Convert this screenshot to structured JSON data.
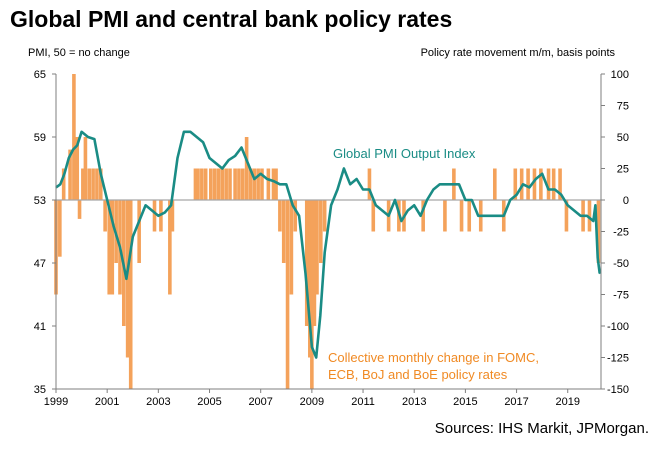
{
  "title": "Global PMI and central bank policy rates",
  "left_axis_caption": "PMI, 50 = no change",
  "right_axis_caption": "Policy rate movement m/m, basis points",
  "source": "Sources: IHS Markit, JPMorgan.",
  "chart_data": {
    "type": "bar+line",
    "x_ticks": [
      "1999",
      "2001",
      "2003",
      "2005",
      "2007",
      "2009",
      "2011",
      "2013",
      "2015",
      "2017",
      "2019"
    ],
    "y_left": {
      "ticks": [
        "65",
        "59",
        "53",
        "47",
        "41",
        "35"
      ],
      "range": [
        35,
        65
      ]
    },
    "y_right": {
      "ticks": [
        "100",
        "75",
        "50",
        "25",
        "0",
        "-25",
        "-50",
        "-75",
        "-100",
        "-125",
        "-150"
      ],
      "range": [
        -150,
        100
      ]
    },
    "line": {
      "name": "Global PMI Output Index",
      "color": "#1a8c85",
      "x": [
        1999.0,
        1999.17,
        1999.33,
        1999.5,
        1999.67,
        1999.83,
        2000.0,
        2000.25,
        2000.5,
        2000.75,
        2001.0,
        2001.25,
        2001.5,
        2001.75,
        2002.0,
        2002.25,
        2002.5,
        2002.75,
        2003.0,
        2003.25,
        2003.5,
        2003.75,
        2004.0,
        2004.25,
        2004.5,
        2004.75,
        2005.0,
        2005.25,
        2005.5,
        2005.75,
        2006.0,
        2006.25,
        2006.5,
        2006.75,
        2007.0,
        2007.25,
        2007.5,
        2007.75,
        2008.0,
        2008.25,
        2008.5,
        2008.75,
        2009.0,
        2009.17,
        2009.33,
        2009.5,
        2009.75,
        2010.0,
        2010.25,
        2010.5,
        2010.75,
        2011.0,
        2011.25,
        2011.5,
        2011.75,
        2012.0,
        2012.25,
        2012.5,
        2012.75,
        2013.0,
        2013.25,
        2013.5,
        2013.75,
        2014.0,
        2014.25,
        2014.5,
        2014.75,
        2015.0,
        2015.25,
        2015.5,
        2015.75,
        2016.0,
        2016.25,
        2016.5,
        2016.75,
        2017.0,
        2017.25,
        2017.5,
        2017.75,
        2018.0,
        2018.25,
        2018.5,
        2018.75,
        2019.0,
        2019.25,
        2019.5,
        2019.75,
        2020.0,
        2020.08,
        2020.17,
        2020.25
      ],
      "y": [
        54.2,
        54.5,
        55.5,
        57.0,
        57.8,
        58.2,
        59.5,
        59.0,
        58.8,
        55.5,
        53.0,
        50.5,
        48.5,
        45.5,
        49.5,
        51.0,
        52.5,
        52.0,
        51.5,
        51.8,
        52.5,
        57.0,
        59.5,
        59.5,
        59.0,
        58.5,
        57.0,
        56.5,
        56.0,
        56.8,
        57.2,
        58.0,
        56.5,
        55.0,
        55.5,
        55.0,
        54.8,
        54.5,
        54.5,
        52.5,
        51.5,
        46.0,
        39.0,
        38.0,
        42.0,
        48.0,
        52.5,
        54.0,
        56.0,
        54.5,
        55.0,
        54.0,
        54.0,
        52.5,
        52.0,
        51.5,
        53.0,
        51.0,
        52.0,
        52.5,
        51.5,
        53.0,
        54.0,
        54.5,
        54.5,
        54.5,
        54.5,
        53.0,
        53.0,
        51.5,
        51.5,
        51.5,
        51.5,
        51.5,
        53.0,
        53.5,
        54.5,
        54.2,
        55.0,
        55.5,
        54.0,
        54.0,
        53.5,
        52.5,
        52.0,
        51.5,
        51.5,
        51.0,
        52.5,
        47.5,
        46.0
      ]
    },
    "bars": {
      "name": "Collective monthly change in FOMC, ECB, BoJ and BoE policy rates",
      "color": "#f4a25b",
      "x": [
        1999.0,
        1999.15,
        1999.3,
        1999.55,
        1999.7,
        1999.83,
        1999.92,
        2000.05,
        2000.15,
        2000.3,
        2000.45,
        2000.6,
        2000.75,
        2000.92,
        2001.08,
        2001.2,
        2001.35,
        2001.5,
        2001.65,
        2001.8,
        2001.92,
        2002.25,
        2002.85,
        2003.1,
        2003.45,
        2003.55,
        2004.45,
        2004.55,
        2004.7,
        2004.85,
        2005.05,
        2005.2,
        2005.35,
        2005.5,
        2005.65,
        2005.8,
        2006.0,
        2006.15,
        2006.3,
        2006.45,
        2006.6,
        2006.75,
        2006.9,
        2007.05,
        2007.3,
        2007.5,
        2007.6,
        2007.75,
        2007.9,
        2008.05,
        2008.2,
        2008.35,
        2008.8,
        2008.92,
        2009.0,
        2009.1,
        2009.2,
        2009.35,
        2009.5,
        2011.25,
        2011.4,
        2012.0,
        2012.4,
        2012.6,
        2013.35,
        2014.2,
        2014.55,
        2014.85,
        2015.15,
        2015.6,
        2016.15,
        2016.5,
        2016.95,
        2017.2,
        2017.45,
        2017.7,
        2017.95,
        2018.25,
        2018.45,
        2018.7,
        2018.95,
        2019.6,
        2019.85,
        2020.2
      ],
      "values": [
        -75,
        -45,
        25,
        40,
        100,
        50,
        -15,
        25,
        50,
        25,
        25,
        25,
        25,
        -25,
        -75,
        -75,
        -50,
        -75,
        -100,
        -125,
        -150,
        -50,
        -25,
        -25,
        -75,
        -25,
        25,
        25,
        25,
        25,
        25,
        25,
        25,
        25,
        25,
        25,
        25,
        25,
        25,
        50,
        25,
        25,
        25,
        25,
        25,
        25,
        25,
        -25,
        -50,
        -150,
        -75,
        -25,
        -100,
        -125,
        -150,
        -100,
        -75,
        -50,
        -25,
        25,
        -25,
        -25,
        -25,
        -25,
        -25,
        -25,
        25,
        -25,
        -25,
        -25,
        25,
        -25,
        25,
        25,
        25,
        25,
        25,
        25,
        25,
        25,
        -25,
        -25,
        -25,
        -50
      ]
    },
    "annotations": [
      {
        "text": "Global PMI Output Index",
        "color": "#1a8c85"
      },
      {
        "text_lines": [
          "Collective monthly change in FOMC,",
          "ECB, BoJ and BoE policy rates"
        ],
        "color": "#f08a24"
      }
    ]
  }
}
